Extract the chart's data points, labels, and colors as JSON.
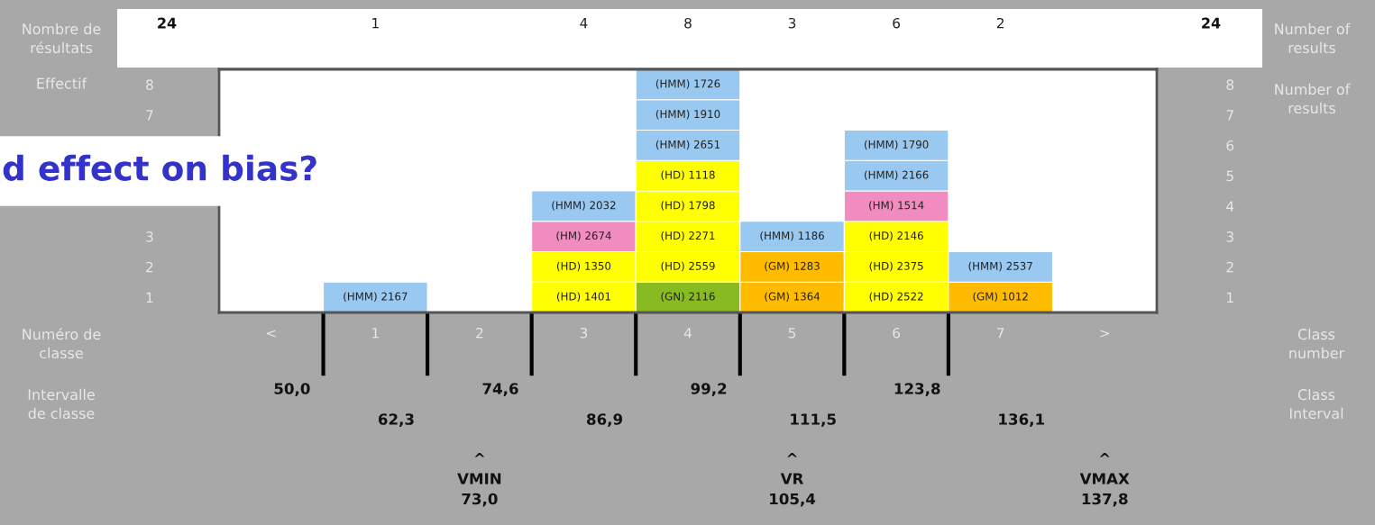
{
  "chart_data": {
    "type": "bar",
    "stacked": true,
    "categories": [
      "<",
      "1",
      "2",
      "3",
      "4",
      "5",
      "6",
      "7",
      ">"
    ],
    "ylim": [
      0,
      8
    ],
    "yticks": [
      {
        "value": 0.5,
        "label": "1"
      },
      {
        "value": 1.5,
        "label": "2"
      },
      {
        "value": 2.5,
        "label": "3"
      },
      {
        "value": 6.5,
        "label": "7"
      },
      {
        "value": 7.5,
        "label": "8"
      }
    ],
    "y2lim": [
      0,
      8
    ],
    "y2ticks": [
      {
        "value": 0.5,
        "label": "1"
      },
      {
        "value": 1.5,
        "label": "2"
      },
      {
        "value": 2.5,
        "label": "3"
      },
      {
        "value": 3.5,
        "label": "4"
      },
      {
        "value": 4.5,
        "label": "5"
      },
      {
        "value": 5.5,
        "label": "6"
      },
      {
        "value": 6.5,
        "label": "7"
      },
      {
        "value": 7.5,
        "label": "8"
      }
    ],
    "series": [
      {
        "values": [
          null,
          1,
          null,
          1,
          1,
          1,
          1,
          1,
          null
        ],
        "colors": [
          null,
          "#99c8f0",
          null,
          "#ffff00",
          "#88bb22",
          "#ffbb00",
          "#ffff00",
          "#ffbb00",
          null
        ]
      },
      {
        "values": [
          null,
          null,
          null,
          1,
          1,
          1,
          1,
          1,
          null
        ],
        "colors": [
          null,
          null,
          null,
          "#ffff00",
          "#ffff00",
          "#ffbb00",
          "#ffff00",
          "#99c8f0",
          null
        ]
      },
      {
        "values": [
          null,
          null,
          null,
          1,
          1,
          1,
          1,
          null,
          null
        ],
        "colors": [
          null,
          null,
          null,
          "#f08cc0",
          "#ffff00",
          "#99c8f0",
          "#ffff00",
          null,
          null
        ]
      },
      {
        "values": [
          null,
          null,
          null,
          1,
          1,
          null,
          1,
          null,
          null
        ],
        "colors": [
          null,
          null,
          null,
          "#99c8f0",
          "#ffff00",
          null,
          "#f08cc0",
          null,
          null
        ]
      },
      {
        "values": [
          null,
          null,
          null,
          null,
          1,
          null,
          1,
          null,
          null
        ],
        "colors": [
          null,
          null,
          null,
          null,
          "#ffff00",
          null,
          "#99c8f0",
          null,
          null
        ]
      },
      {
        "values": [
          null,
          null,
          null,
          null,
          1,
          null,
          1,
          null,
          null
        ],
        "colors": [
          null,
          null,
          null,
          null,
          "#99c8f0",
          null,
          "#99c8f0",
          null,
          null
        ]
      },
      {
        "values": [
          null,
          null,
          null,
          null,
          1,
          null,
          null,
          null,
          null
        ],
        "colors": [
          null,
          null,
          null,
          null,
          "#99c8f0",
          null,
          null,
          null,
          null
        ]
      },
      {
        "values": [
          null,
          null,
          null,
          null,
          1,
          null,
          null,
          null,
          null
        ],
        "colors": [
          null,
          null,
          null,
          null,
          "#99c8f0",
          null,
          null,
          null,
          null
        ]
      }
    ],
    "annotations": [
      "Nombre de\nrésultats",
      "24",
      "24",
      "Number of\nresults",
      "Effectif",
      "Number of\nresults",
      "Numéro de\nclasse",
      "Class\nnumber",
      "Intervalle\nde classe",
      "Class\nInterval",
      "50,0",
      "62,3",
      "74,6",
      "86,9",
      "99,2",
      "111,5",
      "123,8",
      "136,1",
      "^\nVMIN\n73,0",
      "^\nVR\n105,4",
      "^\nVMAX\n137,8",
      "1",
      "4",
      "8",
      "3",
      "6",
      "2",
      "d effect on bias?",
      {
        "text": "(HMM) 2167",
        "x": "1",
        "y": 1
      },
      {
        "text": "(HD) 1401",
        "x": "3",
        "y": 1
      },
      {
        "text": "(HD) 1350",
        "x": "3",
        "y": 2
      },
      {
        "text": "(HM) 2674",
        "x": "3",
        "y": 3
      },
      {
        "text": "(HMM) 2032",
        "x": "3",
        "y": 4
      },
      {
        "text": "(GN) 2116",
        "x": "4",
        "y": 1
      },
      {
        "text": "(HD) 2559",
        "x": "4",
        "y": 2
      },
      {
        "text": "(HD) 2271",
        "x": "4",
        "y": 3
      },
      {
        "text": "(HD) 1798",
        "x": "4",
        "y": 4
      },
      {
        "text": "(HD) 1118",
        "x": "4",
        "y": 5
      },
      {
        "text": "(HMM) 2651",
        "x": "4",
        "y": 6
      },
      {
        "text": "(HMM) 1910",
        "x": "4",
        "y": 7
      },
      {
        "text": "(HMM) 1726",
        "x": "4",
        "y": 8
      },
      {
        "text": "(GM) 1364",
        "x": "5",
        "y": 1
      },
      {
        "text": "(GM) 1283",
        "x": "5",
        "y": 2
      },
      {
        "text": "(HMM) 1186",
        "x": "5",
        "y": 3
      },
      {
        "text": "(HD) 2522",
        "x": "6",
        "y": 1
      },
      {
        "text": "(HD) 2375",
        "x": "6",
        "y": 2
      },
      {
        "text": "(HD) 2146",
        "x": "6",
        "y": 3
      },
      {
        "text": "(HM) 1514",
        "x": "6",
        "y": 4
      },
      {
        "text": "(HMM) 2166",
        "x": "6",
        "y": 5
      },
      {
        "text": "(HMM) 1790",
        "x": "6",
        "y": 6
      },
      {
        "text": "(GM) 1012",
        "x": "7",
        "y": 1
      },
      {
        "text": "(HMM) 2537",
        "x": "7",
        "y": 2
      }
    ],
    "grid": false
  }
}
